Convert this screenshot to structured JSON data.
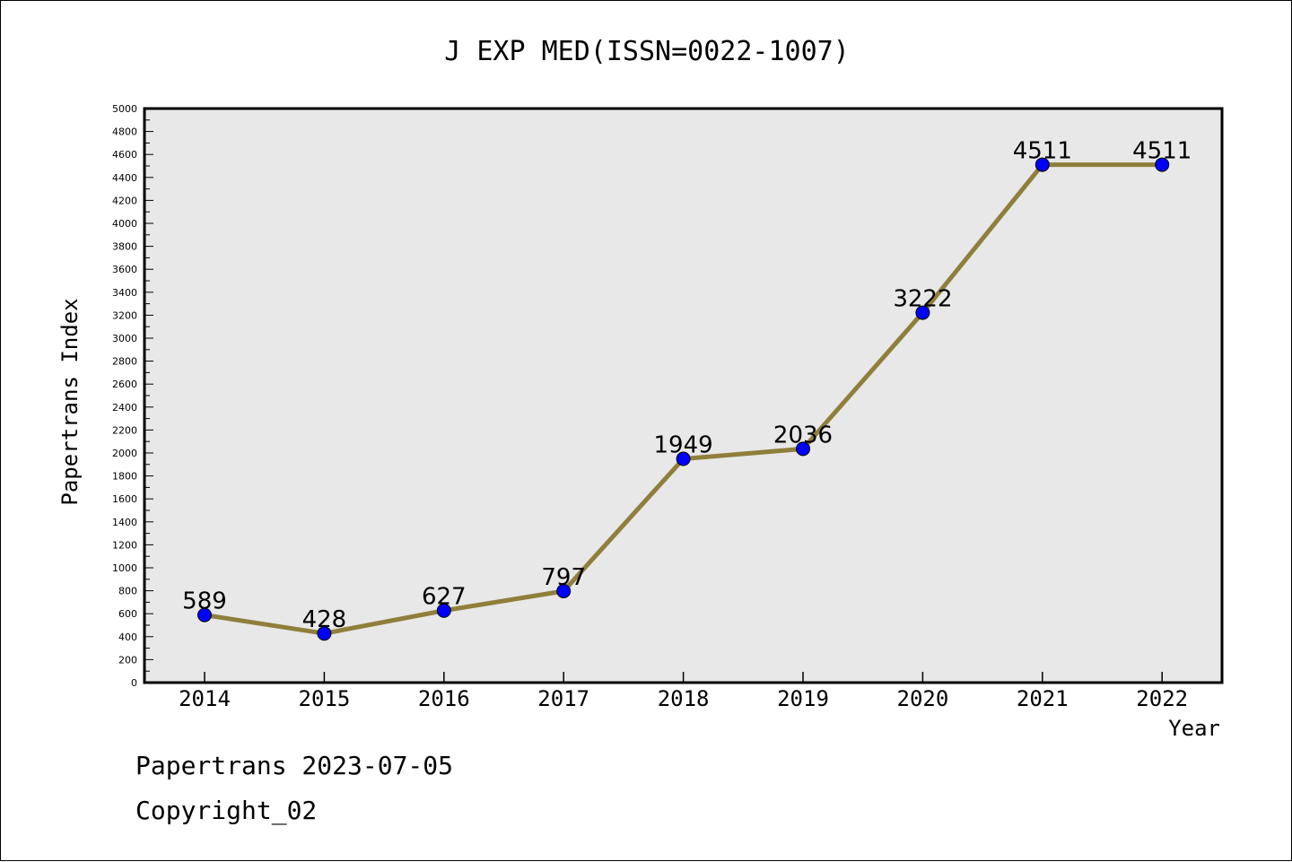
{
  "chart_data": {
    "type": "line",
    "title": "J EXP MED(ISSN=0022-1007)",
    "xlabel": "Year",
    "ylabel": "Papertrans Index",
    "categories": [
      "2014",
      "2015",
      "2016",
      "2017",
      "2018",
      "2019",
      "2020",
      "2021",
      "2022"
    ],
    "series": [
      {
        "values": [
          589,
          428,
          627,
          797,
          1949,
          2036,
          3222,
          4511,
          4511
        ]
      }
    ],
    "ylim": [
      0,
      5000
    ],
    "ytick_step": 200,
    "ytick_labels": [
      "0",
      "200",
      "400",
      "600",
      "800",
      "1000",
      "1200",
      "1400",
      "1600",
      "1800",
      "2000",
      "2200",
      "2400",
      "2600",
      "2800",
      "3000",
      "3200",
      "3400",
      "3600",
      "3800",
      "4000",
      "4200",
      "4400",
      "4600",
      "4800",
      "5000"
    ],
    "grid": false,
    "line_color": "#8f7f3b",
    "marker_color": "#0000ff",
    "plot_background": "#e8e8e8"
  },
  "footer": {
    "date_text": "Papertrans 2023-07-05",
    "copyright_text": "Copyright_02"
  }
}
